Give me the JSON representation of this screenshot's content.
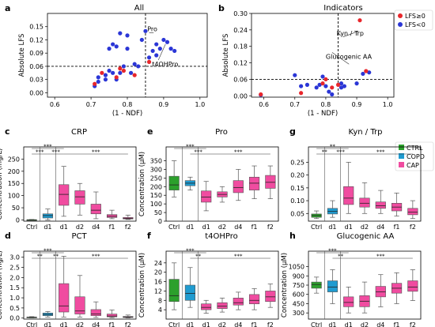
{
  "colors": {
    "ctrl": "#2ca02c",
    "copd": "#1f9bd0",
    "cap": "#f04ca0",
    "high": "#e8262b",
    "low": "#2b36d6"
  },
  "scatter_legend": {
    "high": "LFS≥0",
    "low": "LFS<0"
  },
  "box_legend": [
    "CTRL",
    "COPD",
    "CAP"
  ],
  "chart_data": [
    {
      "panel": "a",
      "type": "scatter",
      "title": "All",
      "xlabel": "(1 - NDF)",
      "ylabel": "Absolute LFS",
      "xlim": [
        0.58,
        1.02
      ],
      "ylim": [
        -0.01,
        0.18
      ],
      "xticks": [
        "0.6",
        "0.7",
        "0.8",
        "0.9",
        "1.0"
      ],
      "yticks": [
        "0.00",
        "0.03",
        "0.06",
        "0.09",
        "0.12",
        "0.15"
      ],
      "threshold_x": 0.85,
      "threshold_y": 0.06,
      "annotations": [
        "Pro",
        "t4OHPro"
      ],
      "series": [
        {
          "name": "LFS≥0",
          "points": [
            [
              0.71,
              0.02
            ],
            [
              0.73,
              0.045
            ],
            [
              0.77,
              0.035
            ],
            [
              0.78,
              0.055
            ],
            [
              0.79,
              0.05
            ],
            [
              0.82,
              0.04
            ],
            [
              0.86,
              0.07
            ]
          ]
        },
        {
          "name": "LFS<0",
          "points": [
            [
              0.71,
              0.015
            ],
            [
              0.72,
              0.025
            ],
            [
              0.72,
              0.035
            ],
            [
              0.74,
              0.03
            ],
            [
              0.74,
              0.04
            ],
            [
              0.75,
              0.05
            ],
            [
              0.75,
              0.1
            ],
            [
              0.76,
              0.045
            ],
            [
              0.76,
              0.11
            ],
            [
              0.77,
              0.03
            ],
            [
              0.77,
              0.105
            ],
            [
              0.78,
              0.045
            ],
            [
              0.78,
              0.135
            ],
            [
              0.79,
              0.06
            ],
            [
              0.8,
              0.1
            ],
            [
              0.8,
              0.13
            ],
            [
              0.81,
              0.045
            ],
            [
              0.82,
              0.065
            ],
            [
              0.83,
              0.06
            ],
            [
              0.84,
              0.12
            ],
            [
              0.85,
              0.14
            ],
            [
              0.86,
              0.08
            ],
            [
              0.87,
              0.095
            ],
            [
              0.88,
              0.085
            ],
            [
              0.88,
              0.11
            ],
            [
              0.89,
              0.1
            ],
            [
              0.9,
              0.12
            ],
            [
              0.91,
              0.115
            ],
            [
              0.92,
              0.1
            ],
            [
              0.93,
              0.095
            ]
          ]
        }
      ]
    },
    {
      "panel": "b",
      "type": "scatter",
      "title": "Indicators",
      "xlabel": "(1 - NDF)",
      "ylabel": "Absolute LFS",
      "xlim": [
        0.56,
        1.02
      ],
      "ylim": [
        -0.005,
        0.3
      ],
      "xticks": [
        "0.6",
        "0.7",
        "0.8",
        "0.9",
        "1.0"
      ],
      "yticks": [
        "0.00",
        "0.06",
        "0.12",
        "0.18",
        "0.24",
        "0.30"
      ],
      "threshold_x": 0.84,
      "threshold_y": 0.06,
      "annotations": [
        "Kyn / Trp",
        "Glucogenic AA"
      ],
      "series": [
        {
          "name": "LFS≥0",
          "points": [
            [
              0.59,
              0.005
            ],
            [
              0.72,
              0.01
            ],
            [
              0.79,
              0.045
            ],
            [
              0.8,
              0.06
            ],
            [
              0.82,
              0.03
            ],
            [
              0.84,
              0.04
            ],
            [
              0.91,
              0.275
            ],
            [
              0.93,
              0.09
            ]
          ]
        },
        {
          "name": "LFS<0",
          "points": [
            [
              0.59,
              0.003
            ],
            [
              0.7,
              0.075
            ],
            [
              0.72,
              0.035
            ],
            [
              0.74,
              0.04
            ],
            [
              0.77,
              0.03
            ],
            [
              0.78,
              0.04
            ],
            [
              0.79,
              0.07
            ],
            [
              0.8,
              0.035
            ],
            [
              0.81,
              0.015
            ],
            [
              0.82,
              0.005
            ],
            [
              0.85,
              0.045
            ],
            [
              0.85,
              0.03
            ],
            [
              0.86,
              0.035
            ],
            [
              0.9,
              0.045
            ],
            [
              0.92,
              0.08
            ],
            [
              0.94,
              0.085
            ]
          ]
        }
      ]
    },
    {
      "panel": "c",
      "type": "box",
      "title": "CRP",
      "ylabel": "Concentration (mg/L)",
      "categories": [
        "Ctrl",
        "d1",
        "d1",
        "d2",
        "d4",
        "f1",
        "f2"
      ],
      "groups": [
        "CTRL",
        "COPD",
        "CAP",
        "CAP",
        "CAP",
        "CAP",
        "CAP"
      ],
      "ylim": [
        -5,
        300
      ],
      "yticks": [
        "0",
        "50",
        "100",
        "150",
        "200",
        "250"
      ],
      "boxes": [
        [
          0,
          0,
          0.5,
          1,
          2
        ],
        [
          0,
          8,
          18,
          25,
          45
        ],
        [
          15,
          60,
          105,
          145,
          220
        ],
        [
          20,
          65,
          95,
          120,
          150
        ],
        [
          5,
          25,
          40,
          65,
          115
        ],
        [
          5,
          10,
          15,
          22,
          40
        ],
        [
          2,
          4,
          7,
          10,
          20
        ]
      ],
      "significance": [
        {
          "from": 0,
          "to": 1,
          "level": 0,
          "label": "***"
        },
        {
          "from": 1,
          "to": 2,
          "level": 0,
          "label": "***"
        },
        {
          "from": 0,
          "to": 2,
          "level": 1,
          "label": "***"
        },
        {
          "from": 2,
          "to": 6,
          "level": 0,
          "label": "***"
        }
      ]
    },
    {
      "panel": "d",
      "type": "box",
      "title": "PCT",
      "ylabel": "Concentration (ng/L)",
      "categories": [
        "Ctrl",
        "d1",
        "d1",
        "d2",
        "d4",
        "f1",
        "f2"
      ],
      "groups": [
        "CTRL",
        "COPD",
        "CAP",
        "CAP",
        "CAP",
        "CAP",
        "CAP"
      ],
      "ylim": [
        -0.05,
        3.3
      ],
      "yticks": [
        "0.0",
        "0.5",
        "1.0",
        "1.5",
        "2.0",
        "2.5",
        "3.0"
      ],
      "boxes": [
        [
          0.01,
          0.02,
          0.04,
          0.05,
          0.07
        ],
        [
          0.05,
          0.12,
          0.18,
          0.25,
          0.32
        ],
        [
          0.05,
          0.3,
          0.6,
          1.7,
          3.05
        ],
        [
          0.05,
          0.2,
          0.35,
          1.05,
          2.1
        ],
        [
          0.03,
          0.12,
          0.2,
          0.42,
          0.8
        ],
        [
          0.02,
          0.06,
          0.1,
          0.2,
          0.4
        ],
        [
          0.01,
          0.03,
          0.05,
          0.08,
          0.15
        ]
      ],
      "significance": [
        {
          "from": 0,
          "to": 1,
          "level": 0,
          "label": "**"
        },
        {
          "from": 1,
          "to": 2,
          "level": 0,
          "label": "**"
        },
        {
          "from": 0,
          "to": 2,
          "level": 1,
          "label": "***"
        },
        {
          "from": 2,
          "to": 6,
          "level": 0,
          "label": "***"
        }
      ]
    },
    {
      "panel": "e",
      "type": "box",
      "title": "Pro",
      "ylabel": "Concentration (μM)",
      "categories": [
        "Ctrl",
        "d1",
        "d1",
        "d2",
        "d4",
        "f1",
        "f2"
      ],
      "groups": [
        "CTRL",
        "COPD",
        "CAP",
        "CAP",
        "CAP",
        "CAP",
        "CAP"
      ],
      "ylim": [
        0,
        430
      ],
      "yticks": [
        "0",
        "50",
        "100",
        "150",
        "200",
        "250",
        "300",
        "350"
      ],
      "boxes": [
        [
          140,
          180,
          210,
          260,
          350
        ],
        [
          180,
          205,
          220,
          235,
          255
        ],
        [
          60,
          110,
          140,
          175,
          230
        ],
        [
          110,
          140,
          155,
          170,
          200
        ],
        [
          120,
          165,
          195,
          235,
          300
        ],
        [
          130,
          180,
          220,
          255,
          320
        ],
        [
          130,
          190,
          225,
          265,
          320
        ]
      ],
      "significance": [
        {
          "from": 0,
          "to": 2,
          "level": 1,
          "label": "***"
        },
        {
          "from": 1,
          "to": 2,
          "level": 0,
          "label": "***"
        },
        {
          "from": 2,
          "to": 6,
          "level": 0,
          "label": "***"
        }
      ]
    },
    {
      "panel": "f",
      "type": "box",
      "title": "t4OHPro",
      "ylabel": "Concentration (μM)",
      "categories": [
        "Ctrl",
        "d1",
        "d1",
        "d2",
        "d4",
        "f1",
        "f2"
      ],
      "groups": [
        "CTRL",
        "COPD",
        "CAP",
        "CAP",
        "CAP",
        "CAP",
        "CAP"
      ],
      "ylim": [
        0,
        29
      ],
      "yticks": [
        "4",
        "8",
        "12",
        "16",
        "20",
        "24"
      ],
      "boxes": [
        [
          4,
          7.5,
          10,
          17,
          24
        ],
        [
          5,
          8,
          11,
          14.5,
          22
        ],
        [
          2.5,
          4,
          5,
          6.5,
          8
        ],
        [
          3,
          4.5,
          5.5,
          7,
          9
        ],
        [
          4,
          6,
          7,
          9,
          11.5
        ],
        [
          4,
          6.5,
          8,
          10.5,
          13
        ],
        [
          5,
          7.5,
          9.5,
          12,
          15
        ]
      ],
      "significance": [
        {
          "from": 0,
          "to": 2,
          "level": 1,
          "label": "***"
        },
        {
          "from": 1,
          "to": 2,
          "level": 0,
          "label": "**"
        },
        {
          "from": 2,
          "to": 6,
          "level": 0,
          "label": "***"
        }
      ]
    },
    {
      "panel": "g",
      "type": "box",
      "title": "Kyn / Trp",
      "ylabel": "",
      "categories": [
        "Ctrl",
        "d1",
        "d1",
        "d2",
        "d4",
        "f1",
        "f2"
      ],
      "groups": [
        "CTRL",
        "COPD",
        "CAP",
        "CAP",
        "CAP",
        "CAP",
        "CAP"
      ],
      "ylim": [
        0.02,
        0.31
      ],
      "yticks": [
        "0.05",
        "0.10",
        "0.15",
        "0.20",
        "0.25"
      ],
      "boxes": [
        [
          0.03,
          0.035,
          0.042,
          0.048,
          0.06
        ],
        [
          0.035,
          0.048,
          0.058,
          0.07,
          0.1
        ],
        [
          0.05,
          0.085,
          0.11,
          0.155,
          0.25
        ],
        [
          0.05,
          0.075,
          0.09,
          0.11,
          0.17
        ],
        [
          0.05,
          0.07,
          0.08,
          0.095,
          0.14
        ],
        [
          0.04,
          0.06,
          0.075,
          0.09,
          0.13
        ],
        [
          0.03,
          0.045,
          0.055,
          0.07,
          0.1
        ]
      ],
      "significance": [
        {
          "from": 0,
          "to": 1,
          "level": 0,
          "label": "**"
        },
        {
          "from": 1,
          "to": 2,
          "level": 0,
          "label": "***"
        },
        {
          "from": 0,
          "to": 2,
          "level": 1,
          "label": "**"
        },
        {
          "from": 2,
          "to": 6,
          "level": 0,
          "label": "***"
        }
      ]
    },
    {
      "panel": "h",
      "type": "box",
      "title": "Glucogenic AA",
      "ylabel": "Concentration (μM)",
      "categories": [
        "Ctrl",
        "d1",
        "d1",
        "d2",
        "d4",
        "f1",
        "f2"
      ],
      "groups": [
        "CTRL",
        "COPD",
        "CAP",
        "CAP",
        "CAP",
        "CAP",
        "CAP"
      ],
      "ylim": [
        200,
        1300
      ],
      "yticks": [
        "300",
        "450",
        "600",
        "750",
        "900",
        "1050"
      ],
      "boxes": [
        [
          620,
          700,
          760,
          800,
          880
        ],
        [
          450,
          640,
          720,
          820,
          1000
        ],
        [
          300,
          400,
          470,
          560,
          720
        ],
        [
          300,
          400,
          490,
          580,
          800
        ],
        [
          400,
          560,
          640,
          730,
          920
        ],
        [
          450,
          620,
          700,
          780,
          950
        ],
        [
          500,
          650,
          720,
          820,
          1000
        ]
      ],
      "significance": [
        {
          "from": 0,
          "to": 2,
          "level": 1,
          "label": "***"
        },
        {
          "from": 1,
          "to": 2,
          "level": 0,
          "label": "**"
        },
        {
          "from": 2,
          "to": 6,
          "level": 0,
          "label": "***"
        }
      ]
    }
  ]
}
